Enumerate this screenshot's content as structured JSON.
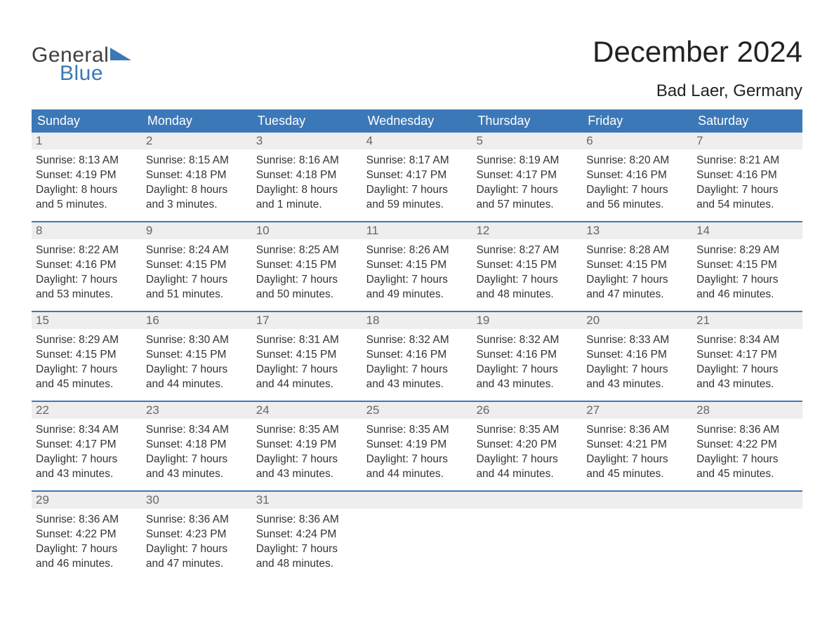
{
  "logo": {
    "word1": "General",
    "word2": "Blue",
    "shape_color": "#3b78b8",
    "text1_color": "#404040",
    "text2_color": "#3b78b8"
  },
  "title": "December 2024",
  "location": "Bad Laer, Germany",
  "colors": {
    "header_bg": "#3b78b8",
    "header_text": "#ffffff",
    "daynum_bg": "#eeeeee",
    "daynum_text": "#666666",
    "body_text": "#333333",
    "row_divider": "#3b78b8",
    "background": "#ffffff"
  },
  "typography": {
    "title_fontsize": 42,
    "location_fontsize": 24,
    "weekday_fontsize": 18,
    "daynum_fontsize": 17,
    "body_fontsize": 15.5,
    "font_family": "Arial"
  },
  "weekdays": [
    "Sunday",
    "Monday",
    "Tuesday",
    "Wednesday",
    "Thursday",
    "Friday",
    "Saturday"
  ],
  "weeks": [
    [
      {
        "num": "1",
        "sunrise": "Sunrise: 8:13 AM",
        "sunset": "Sunset: 4:19 PM",
        "d1": "Daylight: 8 hours",
        "d2": "and 5 minutes."
      },
      {
        "num": "2",
        "sunrise": "Sunrise: 8:15 AM",
        "sunset": "Sunset: 4:18 PM",
        "d1": "Daylight: 8 hours",
        "d2": "and 3 minutes."
      },
      {
        "num": "3",
        "sunrise": "Sunrise: 8:16 AM",
        "sunset": "Sunset: 4:18 PM",
        "d1": "Daylight: 8 hours",
        "d2": "and 1 minute."
      },
      {
        "num": "4",
        "sunrise": "Sunrise: 8:17 AM",
        "sunset": "Sunset: 4:17 PM",
        "d1": "Daylight: 7 hours",
        "d2": "and 59 minutes."
      },
      {
        "num": "5",
        "sunrise": "Sunrise: 8:19 AM",
        "sunset": "Sunset: 4:17 PM",
        "d1": "Daylight: 7 hours",
        "d2": "and 57 minutes."
      },
      {
        "num": "6",
        "sunrise": "Sunrise: 8:20 AM",
        "sunset": "Sunset: 4:16 PM",
        "d1": "Daylight: 7 hours",
        "d2": "and 56 minutes."
      },
      {
        "num": "7",
        "sunrise": "Sunrise: 8:21 AM",
        "sunset": "Sunset: 4:16 PM",
        "d1": "Daylight: 7 hours",
        "d2": "and 54 minutes."
      }
    ],
    [
      {
        "num": "8",
        "sunrise": "Sunrise: 8:22 AM",
        "sunset": "Sunset: 4:16 PM",
        "d1": "Daylight: 7 hours",
        "d2": "and 53 minutes."
      },
      {
        "num": "9",
        "sunrise": "Sunrise: 8:24 AM",
        "sunset": "Sunset: 4:15 PM",
        "d1": "Daylight: 7 hours",
        "d2": "and 51 minutes."
      },
      {
        "num": "10",
        "sunrise": "Sunrise: 8:25 AM",
        "sunset": "Sunset: 4:15 PM",
        "d1": "Daylight: 7 hours",
        "d2": "and 50 minutes."
      },
      {
        "num": "11",
        "sunrise": "Sunrise: 8:26 AM",
        "sunset": "Sunset: 4:15 PM",
        "d1": "Daylight: 7 hours",
        "d2": "and 49 minutes."
      },
      {
        "num": "12",
        "sunrise": "Sunrise: 8:27 AM",
        "sunset": "Sunset: 4:15 PM",
        "d1": "Daylight: 7 hours",
        "d2": "and 48 minutes."
      },
      {
        "num": "13",
        "sunrise": "Sunrise: 8:28 AM",
        "sunset": "Sunset: 4:15 PM",
        "d1": "Daylight: 7 hours",
        "d2": "and 47 minutes."
      },
      {
        "num": "14",
        "sunrise": "Sunrise: 8:29 AM",
        "sunset": "Sunset: 4:15 PM",
        "d1": "Daylight: 7 hours",
        "d2": "and 46 minutes."
      }
    ],
    [
      {
        "num": "15",
        "sunrise": "Sunrise: 8:29 AM",
        "sunset": "Sunset: 4:15 PM",
        "d1": "Daylight: 7 hours",
        "d2": "and 45 minutes."
      },
      {
        "num": "16",
        "sunrise": "Sunrise: 8:30 AM",
        "sunset": "Sunset: 4:15 PM",
        "d1": "Daylight: 7 hours",
        "d2": "and 44 minutes."
      },
      {
        "num": "17",
        "sunrise": "Sunrise: 8:31 AM",
        "sunset": "Sunset: 4:15 PM",
        "d1": "Daylight: 7 hours",
        "d2": "and 44 minutes."
      },
      {
        "num": "18",
        "sunrise": "Sunrise: 8:32 AM",
        "sunset": "Sunset: 4:16 PM",
        "d1": "Daylight: 7 hours",
        "d2": "and 43 minutes."
      },
      {
        "num": "19",
        "sunrise": "Sunrise: 8:32 AM",
        "sunset": "Sunset: 4:16 PM",
        "d1": "Daylight: 7 hours",
        "d2": "and 43 minutes."
      },
      {
        "num": "20",
        "sunrise": "Sunrise: 8:33 AM",
        "sunset": "Sunset: 4:16 PM",
        "d1": "Daylight: 7 hours",
        "d2": "and 43 minutes."
      },
      {
        "num": "21",
        "sunrise": "Sunrise: 8:34 AM",
        "sunset": "Sunset: 4:17 PM",
        "d1": "Daylight: 7 hours",
        "d2": "and 43 minutes."
      }
    ],
    [
      {
        "num": "22",
        "sunrise": "Sunrise: 8:34 AM",
        "sunset": "Sunset: 4:17 PM",
        "d1": "Daylight: 7 hours",
        "d2": "and 43 minutes."
      },
      {
        "num": "23",
        "sunrise": "Sunrise: 8:34 AM",
        "sunset": "Sunset: 4:18 PM",
        "d1": "Daylight: 7 hours",
        "d2": "and 43 minutes."
      },
      {
        "num": "24",
        "sunrise": "Sunrise: 8:35 AM",
        "sunset": "Sunset: 4:19 PM",
        "d1": "Daylight: 7 hours",
        "d2": "and 43 minutes."
      },
      {
        "num": "25",
        "sunrise": "Sunrise: 8:35 AM",
        "sunset": "Sunset: 4:19 PM",
        "d1": "Daylight: 7 hours",
        "d2": "and 44 minutes."
      },
      {
        "num": "26",
        "sunrise": "Sunrise: 8:35 AM",
        "sunset": "Sunset: 4:20 PM",
        "d1": "Daylight: 7 hours",
        "d2": "and 44 minutes."
      },
      {
        "num": "27",
        "sunrise": "Sunrise: 8:36 AM",
        "sunset": "Sunset: 4:21 PM",
        "d1": "Daylight: 7 hours",
        "d2": "and 45 minutes."
      },
      {
        "num": "28",
        "sunrise": "Sunrise: 8:36 AM",
        "sunset": "Sunset: 4:22 PM",
        "d1": "Daylight: 7 hours",
        "d2": "and 45 minutes."
      }
    ],
    [
      {
        "num": "29",
        "sunrise": "Sunrise: 8:36 AM",
        "sunset": "Sunset: 4:22 PM",
        "d1": "Daylight: 7 hours",
        "d2": "and 46 minutes."
      },
      {
        "num": "30",
        "sunrise": "Sunrise: 8:36 AM",
        "sunset": "Sunset: 4:23 PM",
        "d1": "Daylight: 7 hours",
        "d2": "and 47 minutes."
      },
      {
        "num": "31",
        "sunrise": "Sunrise: 8:36 AM",
        "sunset": "Sunset: 4:24 PM",
        "d1": "Daylight: 7 hours",
        "d2": "and 48 minutes."
      },
      {
        "num": "",
        "sunrise": "",
        "sunset": "",
        "d1": "",
        "d2": ""
      },
      {
        "num": "",
        "sunrise": "",
        "sunset": "",
        "d1": "",
        "d2": ""
      },
      {
        "num": "",
        "sunrise": "",
        "sunset": "",
        "d1": "",
        "d2": ""
      },
      {
        "num": "",
        "sunrise": "",
        "sunset": "",
        "d1": "",
        "d2": ""
      }
    ]
  ]
}
